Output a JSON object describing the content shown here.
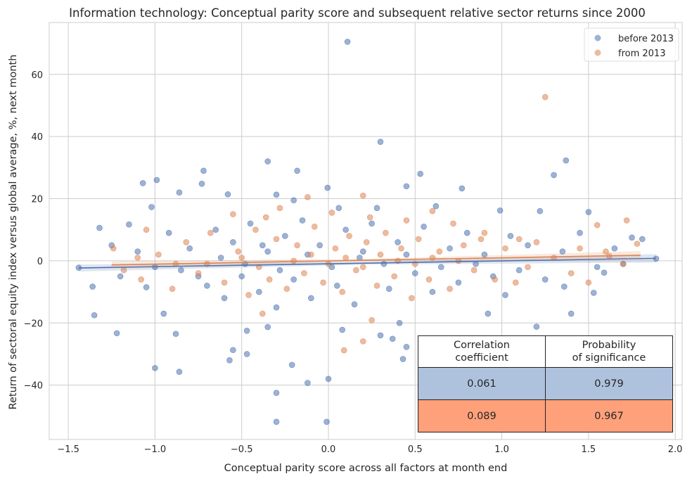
{
  "chart_data": {
    "type": "scatter",
    "title": "Information technology: Conceptual parity score and subsequent relative sector returns since 2000",
    "xlabel": "Conceptual parity score across all factors at month end",
    "ylabel": "Return of sectoral equity index versus global average, %, next month",
    "xlim": [
      -1.61,
      2.04
    ],
    "ylim": [
      -57.5,
      76.7
    ],
    "xticks": [
      -1.5,
      -1.0,
      -0.5,
      0.0,
      0.5,
      1.0,
      1.5,
      2.0
    ],
    "xtick_labels": [
      "−1.5",
      "−1.0",
      "−0.5",
      "0.0",
      "0.5",
      "1.0",
      "1.5",
      "2.0"
    ],
    "yticks": [
      -40,
      -20,
      0,
      20,
      40,
      60
    ],
    "ytick_labels": [
      "−40",
      "−20",
      "0",
      "20",
      "40",
      "60"
    ],
    "grid": true,
    "legend_placement": "top-right",
    "series": [
      {
        "name": "before 2013",
        "color": "#4c72b0",
        "regression": {
          "x": [
            -1.44,
            1.89
          ],
          "y": [
            -2.3,
            0.8
          ]
        },
        "points": [
          [
            0.11,
            70.5
          ],
          [
            0.3,
            38.3
          ],
          [
            -0.35,
            32
          ],
          [
            1.37,
            32.3
          ],
          [
            -0.18,
            29
          ],
          [
            0.53,
            28
          ],
          [
            -0.72,
            29
          ],
          [
            1.3,
            27.6
          ],
          [
            -0.99,
            26
          ],
          [
            -1.07,
            25
          ],
          [
            -0.73,
            24.8
          ],
          [
            0.45,
            24
          ],
          [
            -0.005,
            23.5
          ],
          [
            0.77,
            23.3
          ],
          [
            -1.22,
            -23.3
          ],
          [
            -1.0,
            -34.5
          ],
          [
            -0.86,
            -35.7
          ],
          [
            -0.3,
            -42.5
          ],
          [
            -0.3,
            -51.8
          ],
          [
            -0.01,
            -51.8
          ],
          [
            0.0,
            -38
          ],
          [
            -0.12,
            -39.3
          ],
          [
            -0.21,
            -33.5
          ],
          [
            -0.55,
            -28.7
          ],
          [
            -0.57,
            -32
          ],
          [
            -0.47,
            -30
          ],
          [
            -0.47,
            -22.5
          ],
          [
            1.89,
            0.7
          ],
          [
            -1.44,
            -2.2
          ],
          [
            -1.36,
            -8.3
          ],
          [
            -1.35,
            -17.5
          ],
          [
            1.81,
            7
          ],
          [
            1.5,
            15.7
          ],
          [
            1.53,
            -10.3
          ],
          [
            1.59,
            -3.8
          ],
          [
            1.36,
            -8.3
          ],
          [
            1.4,
            -17
          ],
          [
            1.2,
            -21.2
          ],
          [
            1.02,
            -11
          ],
          [
            0.92,
            -17
          ],
          [
            0.3,
            -24
          ],
          [
            0.37,
            -25.1
          ],
          [
            0.43,
            -31.6
          ],
          [
            0.45,
            -27.7
          ],
          [
            0.41,
            -20
          ],
          [
            0.08,
            -22.2
          ],
          [
            -0.35,
            -21.3
          ],
          [
            -0.95,
            -17
          ],
          [
            -0.88,
            -23.5
          ],
          [
            -1.02,
            17.3
          ],
          [
            -0.86,
            22
          ],
          [
            -0.58,
            21.4
          ],
          [
            -0.3,
            21.3
          ],
          [
            -0.2,
            19.5
          ],
          [
            0.06,
            17
          ],
          [
            0.28,
            17
          ],
          [
            0.62,
            17.6
          ],
          [
            0.99,
            16.2
          ],
          [
            1.22,
            16
          ],
          [
            -1.32,
            10.6
          ],
          [
            -1.15,
            11.7
          ],
          [
            -1.25,
            5
          ],
          [
            -1.1,
            3
          ],
          [
            -1.2,
            -5
          ],
          [
            -1.05,
            -8.5
          ],
          [
            -0.92,
            9
          ],
          [
            -0.85,
            -3
          ],
          [
            -0.8,
            4
          ],
          [
            -0.7,
            -8
          ],
          [
            -0.65,
            10
          ],
          [
            -0.6,
            -12
          ],
          [
            -0.55,
            6
          ],
          [
            -0.5,
            -5
          ],
          [
            -0.45,
            12
          ],
          [
            -0.4,
            -10
          ],
          [
            -0.35,
            3
          ],
          [
            -0.3,
            -15
          ],
          [
            -0.25,
            8
          ],
          [
            -0.2,
            -6
          ],
          [
            -0.15,
            13
          ],
          [
            -0.1,
            -12
          ],
          [
            -0.05,
            5
          ],
          [
            0.05,
            -8
          ],
          [
            0.1,
            10
          ],
          [
            0.15,
            -14
          ],
          [
            0.2,
            3
          ],
          [
            0.25,
            12
          ],
          [
            0.35,
            -9
          ],
          [
            0.4,
            6
          ],
          [
            0.5,
            -4
          ],
          [
            0.55,
            11
          ],
          [
            0.6,
            -10
          ],
          [
            0.7,
            4
          ],
          [
            0.75,
            -7
          ],
          [
            0.8,
            9
          ],
          [
            0.9,
            2
          ],
          [
            0.95,
            -5
          ],
          [
            1.05,
            8
          ],
          [
            1.1,
            -3
          ],
          [
            1.15,
            5
          ],
          [
            1.25,
            -6
          ],
          [
            1.35,
            3
          ],
          [
            1.45,
            9
          ],
          [
            1.55,
            -2
          ],
          [
            1.65,
            4
          ],
          [
            1.7,
            -1
          ],
          [
            1.75,
            7.5
          ],
          [
            -1.0,
            -2
          ],
          [
            -0.75,
            -5
          ],
          [
            -0.62,
            1
          ],
          [
            -0.48,
            -1
          ],
          [
            -0.38,
            5
          ],
          [
            -0.28,
            -3
          ],
          [
            -0.12,
            2
          ],
          [
            0.02,
            -2
          ],
          [
            0.18,
            1
          ],
          [
            0.32,
            -1
          ],
          [
            0.45,
            2
          ],
          [
            0.65,
            -2
          ],
          [
            0.85,
            -1
          ]
        ]
      },
      {
        "name": "from 2013",
        "color": "#dd8452",
        "regression": {
          "x": [
            -1.25,
            1.8
          ],
          "y": [
            -1.3,
            1.8
          ]
        },
        "points": [
          [
            1.25,
            52.7
          ],
          [
            -0.12,
            20.5
          ],
          [
            0.2,
            21
          ],
          [
            0.6,
            16
          ],
          [
            0.09,
            -28.8
          ],
          [
            0.2,
            -25.9
          ],
          [
            0.25,
            -19.1
          ],
          [
            -0.38,
            -17
          ],
          [
            1.08,
            -7
          ],
          [
            1.72,
            13
          ],
          [
            1.55,
            11.5
          ],
          [
            -1.05,
            10
          ],
          [
            -0.55,
            15
          ],
          [
            -0.28,
            17
          ],
          [
            -0.36,
            14
          ],
          [
            0.02,
            15.5
          ],
          [
            0.24,
            14
          ],
          [
            0.45,
            13
          ],
          [
            0.72,
            12
          ],
          [
            0.9,
            9
          ],
          [
            1.1,
            7
          ],
          [
            1.5,
            -7
          ],
          [
            1.6,
            3
          ],
          [
            1.78,
            5.5
          ],
          [
            -1.24,
            4
          ],
          [
            -1.18,
            -3
          ],
          [
            -1.08,
            -6
          ],
          [
            -0.98,
            2
          ],
          [
            -0.9,
            -9
          ],
          [
            -0.82,
            6
          ],
          [
            -0.75,
            -4
          ],
          [
            -0.68,
            9
          ],
          [
            -0.6,
            -7
          ],
          [
            -0.52,
            3
          ],
          [
            -0.46,
            -11
          ],
          [
            -0.42,
            10
          ],
          [
            -0.34,
            -6
          ],
          [
            -0.3,
            7
          ],
          [
            -0.24,
            -9
          ],
          [
            -0.18,
            5
          ],
          [
            -0.14,
            -4
          ],
          [
            -0.08,
            11
          ],
          [
            -0.03,
            -7
          ],
          [
            0.04,
            4
          ],
          [
            0.08,
            -10
          ],
          [
            0.12,
            8
          ],
          [
            0.16,
            -3
          ],
          [
            0.22,
            6
          ],
          [
            0.28,
            -8
          ],
          [
            0.33,
            9
          ],
          [
            0.38,
            -5
          ],
          [
            0.42,
            4
          ],
          [
            0.48,
            -12
          ],
          [
            0.52,
            7
          ],
          [
            0.58,
            -6
          ],
          [
            0.64,
            3
          ],
          [
            0.7,
            -9
          ],
          [
            0.78,
            5
          ],
          [
            0.84,
            -3
          ],
          [
            0.88,
            7
          ],
          [
            0.96,
            -6
          ],
          [
            1.02,
            4
          ],
          [
            1.15,
            -2
          ],
          [
            1.2,
            6
          ],
          [
            1.3,
            1
          ],
          [
            1.4,
            -4
          ],
          [
            1.45,
            4
          ],
          [
            1.62,
            1.5
          ],
          [
            1.7,
            -1
          ],
          [
            -0.7,
            -1
          ],
          [
            -0.5,
            1
          ],
          [
            -0.4,
            -2
          ],
          [
            -0.2,
            0
          ],
          [
            -0.1,
            2
          ],
          [
            0.0,
            -1
          ],
          [
            0.1,
            1
          ],
          [
            0.2,
            -2
          ],
          [
            0.3,
            2
          ],
          [
            0.4,
            0
          ],
          [
            0.5,
            -1
          ],
          [
            0.6,
            1
          ],
          [
            0.75,
            0
          ],
          [
            -0.88,
            -1
          ],
          [
            -1.1,
            1
          ]
        ]
      }
    ],
    "table": {
      "headers": [
        "Correlation\ncoefficient",
        "Probability\nof significance"
      ],
      "rows": [
        {
          "series": "before 2013",
          "color": "#aec2dd",
          "values": [
            "0.061",
            "0.979"
          ]
        },
        {
          "series": "from 2013",
          "color": "#fea07a",
          "values": [
            "0.089",
            "0.967"
          ]
        }
      ]
    }
  }
}
